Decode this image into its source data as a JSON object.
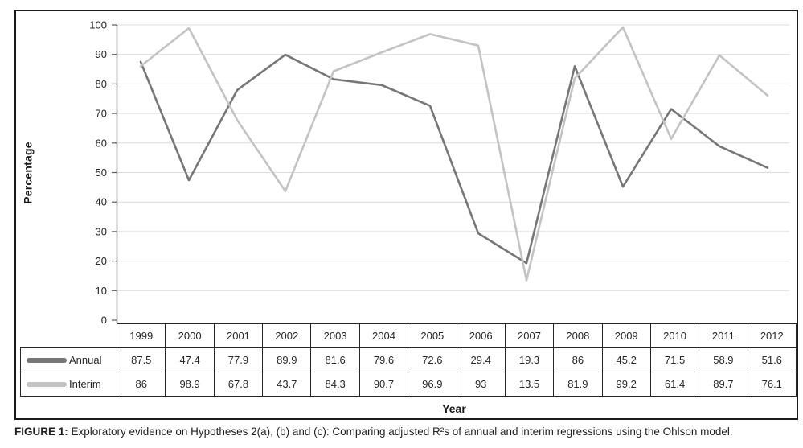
{
  "figure": {
    "caption_label": "FIGURE 1:",
    "caption_text": " Exploratory evidence on Hypotheses 2(a), (b) and (c): Comparing adjusted R²s of annual and interim regressions using the Ohlson model."
  },
  "chart_data": {
    "type": "line",
    "title": "",
    "xlabel": "Year",
    "ylabel": "Percentage",
    "ylim": [
      0,
      100
    ],
    "yticks": [
      0,
      10,
      20,
      30,
      40,
      50,
      60,
      70,
      80,
      90,
      100
    ],
    "grid": true,
    "legend_position": "table-left",
    "categories": [
      "1999",
      "2000",
      "2001",
      "2002",
      "2003",
      "2004",
      "2005",
      "2006",
      "2007",
      "2008",
      "2009",
      "2010",
      "2011",
      "2012"
    ],
    "series": [
      {
        "name": "Annual",
        "color": "#767676",
        "values": [
          87.5,
          47.4,
          77.9,
          89.9,
          81.6,
          79.6,
          72.6,
          29.4,
          19.3,
          86,
          45.2,
          71.5,
          58.9,
          51.6
        ]
      },
      {
        "name": "Interim",
        "color": "#c3c3c3",
        "values": [
          86,
          98.9,
          67.8,
          43.7,
          84.3,
          90.7,
          96.9,
          93,
          13.5,
          81.9,
          99.2,
          61.4,
          89.7,
          76.1
        ]
      }
    ],
    "colors": {
      "gridline": "#dcdcdc",
      "axis": "#595959",
      "tick_label": "#262626"
    }
  }
}
